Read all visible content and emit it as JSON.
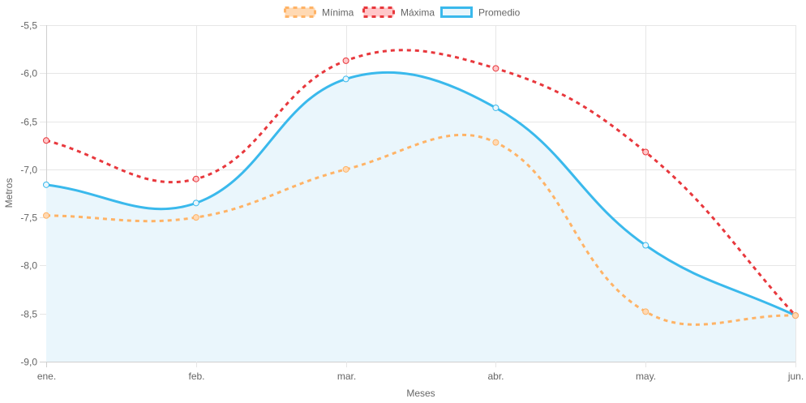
{
  "chart_data": {
    "type": "line",
    "title": "",
    "xlabel": "Meses",
    "ylabel": "Metros",
    "categories": [
      "ene.",
      "feb.",
      "mar.",
      "abr.",
      "may.",
      "jun."
    ],
    "ylim": [
      -9.0,
      -5.5
    ],
    "yticks": [
      -5.5,
      -6.0,
      -6.5,
      -7.0,
      -7.5,
      -8.0,
      -8.5,
      -9.0
    ],
    "ytick_labels": [
      "-5,5",
      "-6,0",
      "-6,5",
      "-7,0",
      "-7,5",
      "-8,0",
      "-8,5",
      "-9,0"
    ],
    "grid": true,
    "legend_position": "top-center",
    "series": [
      {
        "name": "Mínima",
        "values": [
          -7.48,
          -7.5,
          -7.0,
          -6.72,
          -8.48,
          -8.52
        ],
        "color": "#ffb366",
        "fill_color": "#ffd9b3",
        "dashed": true,
        "filled": false
      },
      {
        "name": "Máxima",
        "values": [
          -6.7,
          -7.1,
          -5.87,
          -5.95,
          -6.82,
          -8.52
        ],
        "color": "#e8383d",
        "fill_color": "#ffc7c9",
        "dashed": true,
        "filled": false
      },
      {
        "name": "Promedio",
        "values": [
          -7.16,
          -7.35,
          -6.06,
          -6.36,
          -7.79,
          -8.52
        ],
        "color": "#3ab9ec",
        "fill_color": "#eaf6fc",
        "dashed": false,
        "filled": true
      }
    ]
  }
}
